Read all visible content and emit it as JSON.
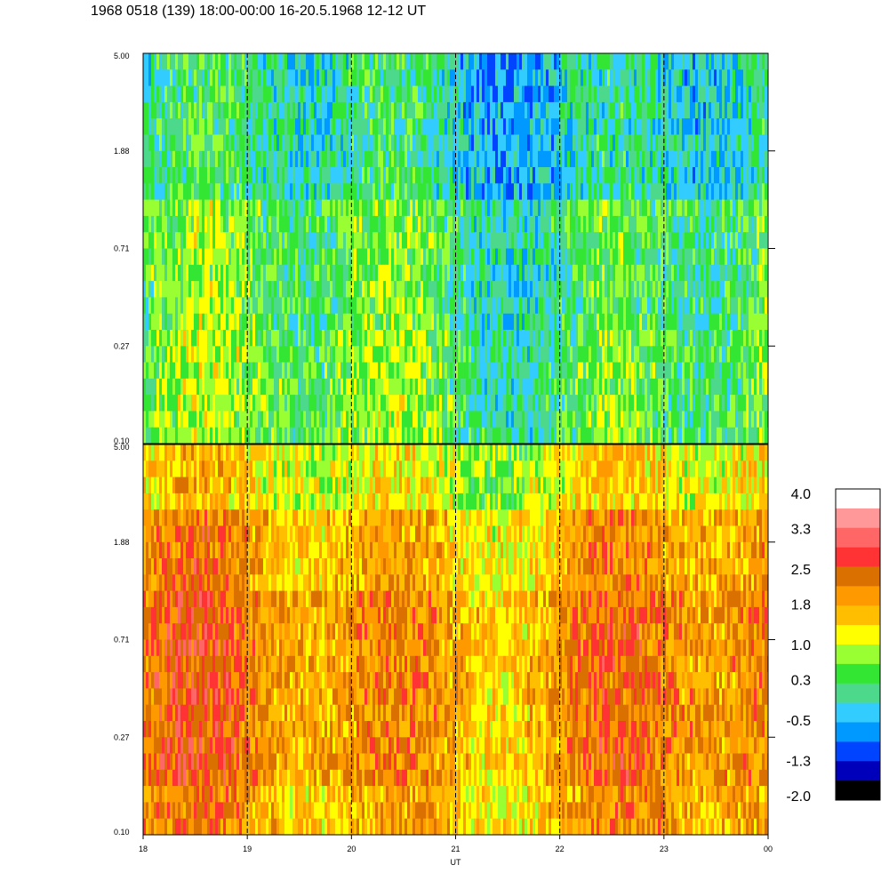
{
  "title": "1968 0518 (139) 18:00-00:00 16-20.5.1968  12-12 UT",
  "chart_data": {
    "type": "heatmap",
    "xlabel": "UT",
    "x_ticks": [
      "18",
      "19",
      "20",
      "21",
      "22",
      "23",
      "00"
    ],
    "x_range": [
      18,
      24
    ],
    "y_scale": "log",
    "panels": [
      {
        "name": "top",
        "y_ticks": [
          "5.00",
          "1.88",
          "0.71",
          "0.27",
          "0.10"
        ],
        "y_range": [
          0.1,
          5.0
        ],
        "dominant_level": 0.3
      },
      {
        "name": "bottom",
        "y_ticks": [
          "5.00",
          "1.88",
          "0.71",
          "0.27",
          "0.10"
        ],
        "y_range": [
          0.1,
          5.0
        ],
        "dominant_level": 1.8
      }
    ],
    "colorbar": {
      "labels": [
        "4.0",
        "3.3",
        "2.5",
        "1.8",
        "1.0",
        "0.3",
        "-0.5",
        "-1.3",
        "-2.0"
      ],
      "range": [
        -2.0,
        4.0
      ],
      "colors": [
        "#ffffff",
        "#ff9999",
        "#ff6666",
        "#ff3333",
        "#d97000",
        "#ff9900",
        "#ffbf00",
        "#ffff00",
        "#99ff33",
        "#33e633",
        "#4dd98c",
        "#33ccff",
        "#0099ff",
        "#0044ff",
        "#0000bb",
        "#000000"
      ]
    }
  }
}
